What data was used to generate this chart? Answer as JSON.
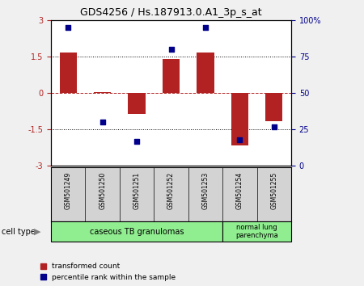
{
  "title": "GDS4256 / Hs.187913.0.A1_3p_s_at",
  "samples": [
    "GSM501249",
    "GSM501250",
    "GSM501251",
    "GSM501252",
    "GSM501253",
    "GSM501254",
    "GSM501255"
  ],
  "transformed_count": [
    1.65,
    0.05,
    -0.85,
    1.4,
    1.65,
    -2.15,
    -1.15
  ],
  "percentile_rank": [
    95,
    30,
    17,
    80,
    95,
    18,
    27
  ],
  "bar_color": "#b22222",
  "dot_color": "#00008b",
  "ylim_left": [
    -3,
    3
  ],
  "ylim_right": [
    0,
    100
  ],
  "yticks_left": [
    -3,
    -1.5,
    0,
    1.5,
    3
  ],
  "ytick_labels_left": [
    "-3",
    "-1.5",
    "0",
    "1.5",
    "3"
  ],
  "yticks_right": [
    0,
    25,
    50,
    75,
    100
  ],
  "ytick_labels_right": [
    "0",
    "25",
    "50",
    "75",
    "100%"
  ],
  "group1_label": "caseous TB granulomas",
  "group1_color": "#90ee90",
  "group1_count": 5,
  "group2_label": "normal lung\nparenchyma",
  "group2_color": "#90ee90",
  "group2_count": 2,
  "cell_type_label": "cell type",
  "legend_bar_label": "transformed count",
  "legend_dot_label": "percentile rank within the sample",
  "bg_color": "#f0f0f0",
  "plot_bg": "#ffffff",
  "sample_box_color": "#d3d3d3",
  "bar_width": 0.5
}
